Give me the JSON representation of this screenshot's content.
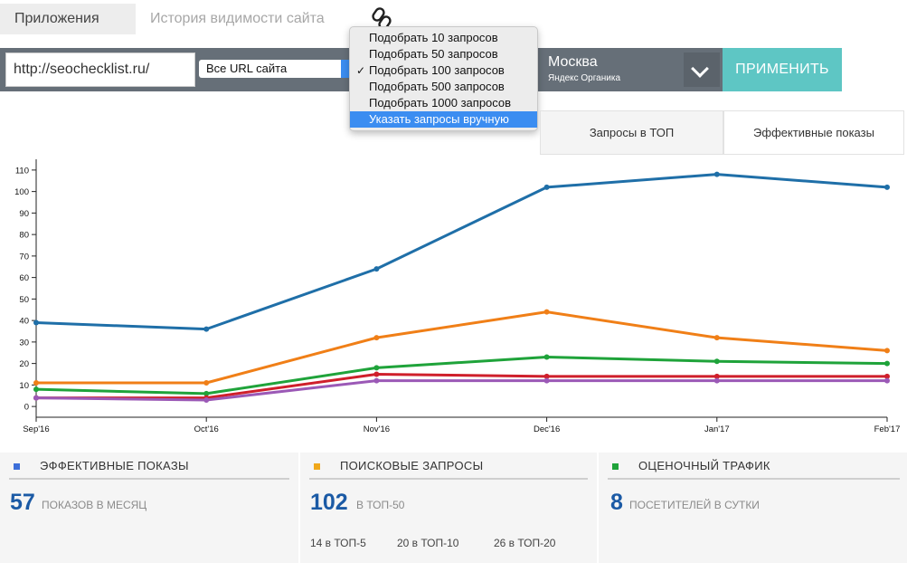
{
  "breadcrumbs": [
    "Приложения",
    "История видимости сайта"
  ],
  "toolbar": {
    "url_value": "http://seochecklist.ru/",
    "url_filter": "Все URL сайта",
    "region_name": "Москва",
    "region_engine": "Яндекс Органика",
    "apply_label": "ПРИМЕНИТЬ"
  },
  "menu": {
    "items": [
      {
        "label": "Подобрать 10 запросов",
        "checked": false,
        "highlighted": false
      },
      {
        "label": "Подобрать 50 запросов",
        "checked": false,
        "highlighted": false
      },
      {
        "label": "Подобрать 100 запросов",
        "checked": true,
        "highlighted": false
      },
      {
        "label": "Подобрать 500 запросов",
        "checked": false,
        "highlighted": false
      },
      {
        "label": "Подобрать 1000 запросов",
        "checked": false,
        "highlighted": false
      },
      {
        "label": "Указать запросы вручную",
        "checked": false,
        "highlighted": true
      }
    ]
  },
  "tabs": [
    "Запросы в ТОП",
    "Эффективные показы"
  ],
  "chart_data": {
    "type": "line",
    "categories": [
      "Sep'16",
      "Oct'16",
      "Nov'16",
      "Dec'16",
      "Jan'17",
      "Feb'17"
    ],
    "y_ticks": [
      0,
      10,
      20,
      30,
      40,
      50,
      60,
      70,
      80,
      90,
      100,
      110
    ],
    "ylim": [
      -5,
      115
    ],
    "grid": false,
    "series": [
      {
        "color": "#1f6fa8",
        "values": [
          39,
          36,
          64,
          102,
          108,
          102
        ]
      },
      {
        "color": "#f07f17",
        "values": [
          11,
          11,
          32,
          44,
          32,
          26
        ]
      },
      {
        "color": "#1fa33a",
        "values": [
          8,
          6,
          18,
          23,
          21,
          20
        ]
      },
      {
        "color": "#cf1f2b",
        "values": [
          4,
          4,
          15,
          14,
          14,
          14
        ]
      },
      {
        "color": "#9b59b6",
        "values": [
          4,
          3,
          12,
          12,
          12,
          12
        ]
      }
    ]
  },
  "stats": {
    "impressions": {
      "title": "ЭФФЕКТИВНЫЕ ПОКАЗЫ",
      "value": "57",
      "unit": "ПОКАЗОВ В МЕСЯЦ",
      "color": "#3d6fd9"
    },
    "queries": {
      "title": "ПОИСКОВЫЕ ЗАПРОСЫ",
      "value": "102",
      "unit": "В ТОП-50",
      "color": "#f0a81b",
      "breakdown": [
        "14 в ТОП-5",
        "20 в ТОП-10",
        "26 в ТОП-20"
      ]
    },
    "traffic": {
      "title": "ОЦЕНОЧНЫЙ ТРАФИК",
      "value": "8",
      "unit": "ПОСЕТИТЕЛЕЙ В СУТКИ",
      "color": "#1fa33a"
    }
  }
}
